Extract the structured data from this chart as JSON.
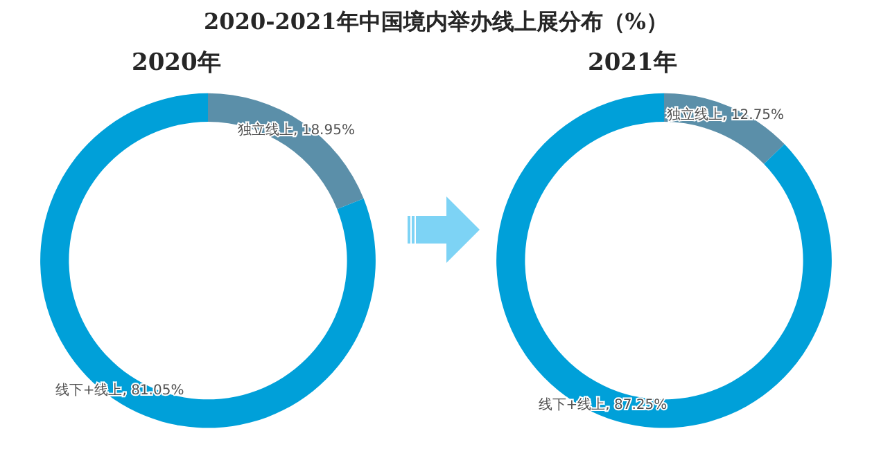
{
  "chart_data": [
    {
      "type": "donut",
      "title": "2020-2021年中国境内举办线上展分布（%）",
      "subtitle": "2020年",
      "categories": [
        "独立线上",
        "线下+线上"
      ],
      "values": [
        18.95,
        81.05
      ],
      "colors": [
        "#5b8fa9",
        "#00a0d9"
      ],
      "value_labels": [
        ", 18.95%",
        ", 81.05%"
      ]
    },
    {
      "type": "donut",
      "title": "2021年",
      "categories": [
        "独立线上",
        "线下+线上"
      ],
      "values": [
        12.75,
        87.25
      ],
      "colors": [
        "#5b8fa9",
        "#00a0d9"
      ],
      "value_labels": [
        ", 12.75%",
        ", 87.25%"
      ]
    }
  ]
}
